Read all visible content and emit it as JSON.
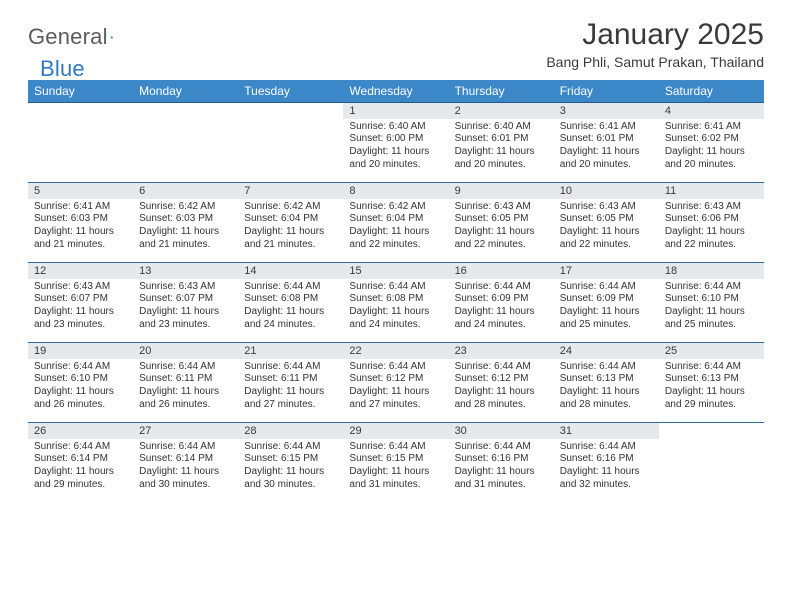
{
  "logo": {
    "word1": "General",
    "word2": "Blue"
  },
  "title": "January 2025",
  "location": "Bang Phli, Samut Prakan, Thailand",
  "colors": {
    "header_bg": "#3b87c8",
    "header_border": "#1f5a8a",
    "daynum_bg": "#e5e9ec",
    "daynum_border": "#2f6aa0",
    "text": "#333333",
    "logo_gray": "#5c5c5c",
    "logo_blue": "#2f7ac0"
  },
  "weekdays": [
    "Sunday",
    "Monday",
    "Tuesday",
    "Wednesday",
    "Thursday",
    "Friday",
    "Saturday"
  ],
  "weeks": [
    [
      null,
      null,
      null,
      {
        "n": "1",
        "sr": "6:40 AM",
        "ss": "6:00 PM",
        "dl": "11 hours and 20 minutes."
      },
      {
        "n": "2",
        "sr": "6:40 AM",
        "ss": "6:01 PM",
        "dl": "11 hours and 20 minutes."
      },
      {
        "n": "3",
        "sr": "6:41 AM",
        "ss": "6:01 PM",
        "dl": "11 hours and 20 minutes."
      },
      {
        "n": "4",
        "sr": "6:41 AM",
        "ss": "6:02 PM",
        "dl": "11 hours and 20 minutes."
      }
    ],
    [
      {
        "n": "5",
        "sr": "6:41 AM",
        "ss": "6:03 PM",
        "dl": "11 hours and 21 minutes."
      },
      {
        "n": "6",
        "sr": "6:42 AM",
        "ss": "6:03 PM",
        "dl": "11 hours and 21 minutes."
      },
      {
        "n": "7",
        "sr": "6:42 AM",
        "ss": "6:04 PM",
        "dl": "11 hours and 21 minutes."
      },
      {
        "n": "8",
        "sr": "6:42 AM",
        "ss": "6:04 PM",
        "dl": "11 hours and 22 minutes."
      },
      {
        "n": "9",
        "sr": "6:43 AM",
        "ss": "6:05 PM",
        "dl": "11 hours and 22 minutes."
      },
      {
        "n": "10",
        "sr": "6:43 AM",
        "ss": "6:05 PM",
        "dl": "11 hours and 22 minutes."
      },
      {
        "n": "11",
        "sr": "6:43 AM",
        "ss": "6:06 PM",
        "dl": "11 hours and 22 minutes."
      }
    ],
    [
      {
        "n": "12",
        "sr": "6:43 AM",
        "ss": "6:07 PM",
        "dl": "11 hours and 23 minutes."
      },
      {
        "n": "13",
        "sr": "6:43 AM",
        "ss": "6:07 PM",
        "dl": "11 hours and 23 minutes."
      },
      {
        "n": "14",
        "sr": "6:44 AM",
        "ss": "6:08 PM",
        "dl": "11 hours and 24 minutes."
      },
      {
        "n": "15",
        "sr": "6:44 AM",
        "ss": "6:08 PM",
        "dl": "11 hours and 24 minutes."
      },
      {
        "n": "16",
        "sr": "6:44 AM",
        "ss": "6:09 PM",
        "dl": "11 hours and 24 minutes."
      },
      {
        "n": "17",
        "sr": "6:44 AM",
        "ss": "6:09 PM",
        "dl": "11 hours and 25 minutes."
      },
      {
        "n": "18",
        "sr": "6:44 AM",
        "ss": "6:10 PM",
        "dl": "11 hours and 25 minutes."
      }
    ],
    [
      {
        "n": "19",
        "sr": "6:44 AM",
        "ss": "6:10 PM",
        "dl": "11 hours and 26 minutes."
      },
      {
        "n": "20",
        "sr": "6:44 AM",
        "ss": "6:11 PM",
        "dl": "11 hours and 26 minutes."
      },
      {
        "n": "21",
        "sr": "6:44 AM",
        "ss": "6:11 PM",
        "dl": "11 hours and 27 minutes."
      },
      {
        "n": "22",
        "sr": "6:44 AM",
        "ss": "6:12 PM",
        "dl": "11 hours and 27 minutes."
      },
      {
        "n": "23",
        "sr": "6:44 AM",
        "ss": "6:12 PM",
        "dl": "11 hours and 28 minutes."
      },
      {
        "n": "24",
        "sr": "6:44 AM",
        "ss": "6:13 PM",
        "dl": "11 hours and 28 minutes."
      },
      {
        "n": "25",
        "sr": "6:44 AM",
        "ss": "6:13 PM",
        "dl": "11 hours and 29 minutes."
      }
    ],
    [
      {
        "n": "26",
        "sr": "6:44 AM",
        "ss": "6:14 PM",
        "dl": "11 hours and 29 minutes."
      },
      {
        "n": "27",
        "sr": "6:44 AM",
        "ss": "6:14 PM",
        "dl": "11 hours and 30 minutes."
      },
      {
        "n": "28",
        "sr": "6:44 AM",
        "ss": "6:15 PM",
        "dl": "11 hours and 30 minutes."
      },
      {
        "n": "29",
        "sr": "6:44 AM",
        "ss": "6:15 PM",
        "dl": "11 hours and 31 minutes."
      },
      {
        "n": "30",
        "sr": "6:44 AM",
        "ss": "6:16 PM",
        "dl": "11 hours and 31 minutes."
      },
      {
        "n": "31",
        "sr": "6:44 AM",
        "ss": "6:16 PM",
        "dl": "11 hours and 32 minutes."
      },
      null
    ]
  ],
  "labels": {
    "sunrise": "Sunrise:",
    "sunset": "Sunset:",
    "daylight": "Daylight:"
  }
}
